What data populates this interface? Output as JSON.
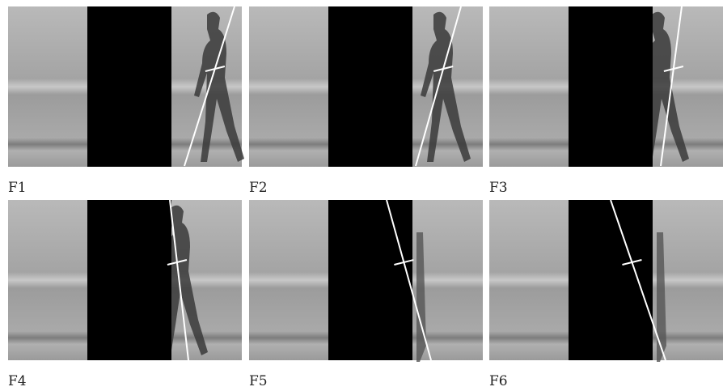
{
  "panels": [
    {
      "label": "F1"
    },
    {
      "label": "F2"
    },
    {
      "label": "F3"
    },
    {
      "label": "F4"
    },
    {
      "label": "F5"
    },
    {
      "label": "F6"
    }
  ]
}
